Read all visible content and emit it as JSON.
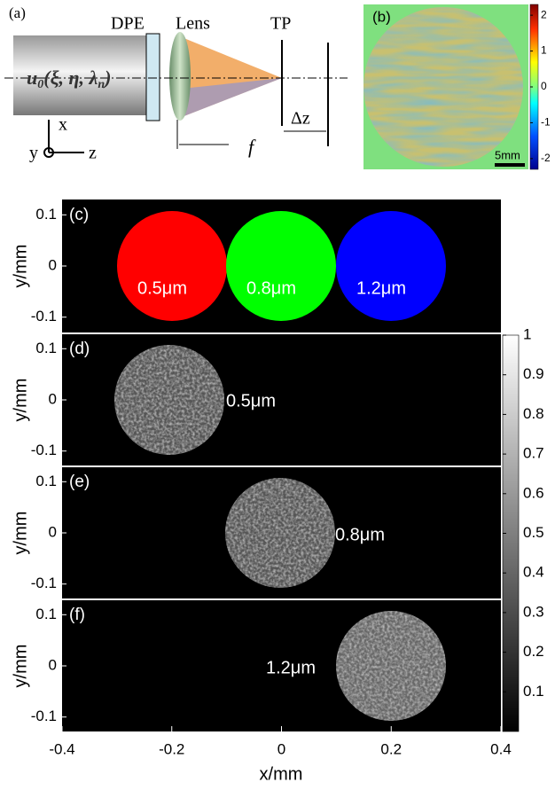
{
  "panel_a": {
    "label": "(a)",
    "dpe": "DPE",
    "lens": "Lens",
    "tp": "TP",
    "field": {
      "u": "u",
      "sub0": "0",
      "args": "(ξ, η, λ",
      "subn": "n",
      "close": ")"
    },
    "focal": "f",
    "delta": "Δz",
    "axis_x": "x",
    "axis_y": "y",
    "axis_z": "z"
  },
  "panel_b": {
    "label": "(b)",
    "scale": "5mm",
    "colorbar_ticks": [
      2,
      1,
      0,
      -1,
      -2
    ],
    "colorbar_lim": [
      -2.3,
      2.3
    ]
  },
  "panels": [
    {
      "label": "(c)"
    },
    {
      "label": "(d)",
      "annotation": "0.5μm"
    },
    {
      "label": "(e)",
      "annotation": "0.8μm"
    },
    {
      "label": "(f)",
      "annotation": "1.2μm"
    }
  ],
  "panel_c_labels": [
    "0.5μm",
    "0.8μm",
    "1.2μm"
  ],
  "x_axis": {
    "label": "x/mm",
    "ticks": [
      -0.4,
      -0.2,
      0,
      0.2,
      0.4
    ],
    "lim": [
      -0.4,
      0.4
    ]
  },
  "y_axis": {
    "label": "y/mm",
    "ticks": [
      0.1,
      0,
      -0.1
    ],
    "lim": [
      -0.13,
      0.13
    ]
  },
  "colorbar": {
    "ticks": [
      1,
      0.9,
      0.8,
      0.7,
      0.6,
      0.5,
      0.4,
      0.3,
      0.2,
      0.1
    ],
    "lim": [
      0,
      1
    ]
  }
}
